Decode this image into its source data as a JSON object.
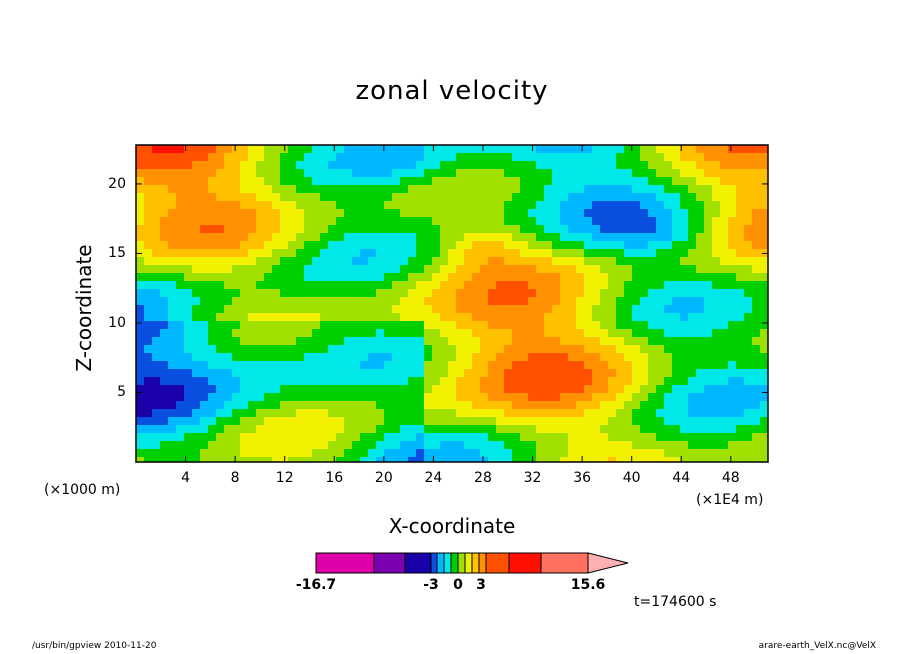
{
  "chart_data": {
    "type": "heatmap",
    "title": "zonal velocity",
    "xlabel": "X-coordinate",
    "ylabel": "Z-coordinate",
    "x_unit_left": "(×1000 m)",
    "x_unit_right": "(×1E4 m)",
    "x_ticks": [
      "4",
      "8",
      "12",
      "16",
      "20",
      "24",
      "28",
      "32",
      "36",
      "40",
      "44",
      "48"
    ],
    "y_ticks": [
      "5",
      "10",
      "15",
      "20"
    ],
    "xlim": [
      0,
      51
    ],
    "ylim": [
      0,
      22.8
    ],
    "colorbar": {
      "labels": [
        "-16.7",
        "-3",
        "0",
        "3",
        "15.6"
      ],
      "colors": [
        "#dd00aa",
        "#7a00b0",
        "#1a00a8",
        "#0a50e0",
        "#00b8ff",
        "#00e8e8",
        "#00d000",
        "#a0e000",
        "#f0f000",
        "#ffc000",
        "#ff9000",
        "#ff5000",
        "#ff1000",
        "#ff7060",
        "#ffb0b0"
      ]
    },
    "time_label": "t=174600 s",
    "footer_left": "/usr/bin/gpview   2010-11-20",
    "footer_right": "arare-earth_VelX.nc@VelX"
  }
}
